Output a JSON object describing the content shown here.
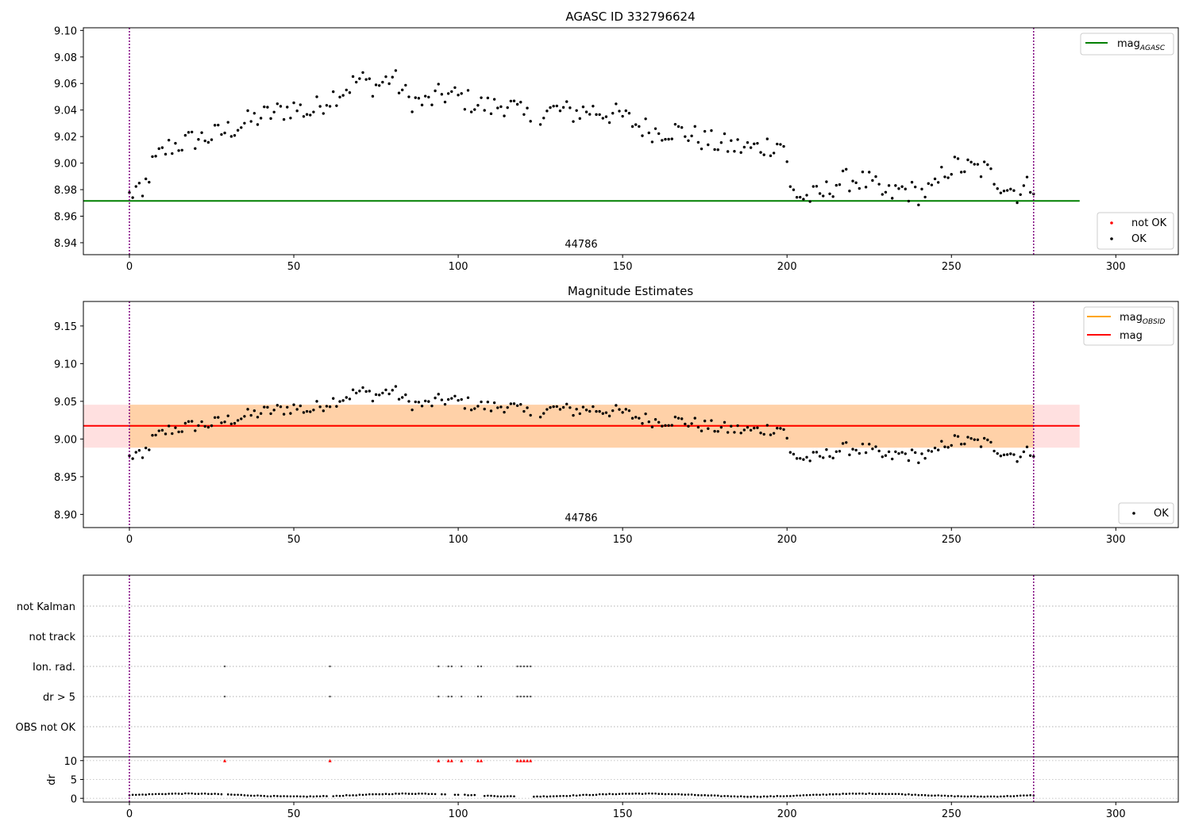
{
  "chart_data": [
    {
      "type": "scatter",
      "title": "AGASC ID 332796624",
      "xlim": [
        -14,
        319
      ],
      "ylim": [
        8.931,
        9.102
      ],
      "xticks": [
        0,
        50,
        100,
        150,
        200,
        250,
        300
      ],
      "xtick_labels": [
        "0",
        "50",
        "100",
        "150",
        "200",
        "250",
        "300"
      ],
      "yticks": [
        8.94,
        8.96,
        8.98,
        9.0,
        9.02,
        9.04,
        9.06,
        9.08,
        9.1
      ],
      "ytick_labels": [
        "8.94",
        "8.96",
        "8.98",
        "9.00",
        "9.02",
        "9.04",
        "9.06",
        "9.08",
        "9.10"
      ],
      "obsid_label": "44786",
      "obs_boundaries": [
        0,
        275
      ],
      "hlines": [
        {
          "name": "mag_AGASC",
          "y": 8.9715,
          "x_range": [
            -14,
            289
          ],
          "color": "#008000"
        }
      ],
      "legends": [
        {
          "position": "top-right",
          "entries": [
            {
              "label": "mag",
              "subscript": "AGASC",
              "kind": "line",
              "color": "#008000"
            }
          ]
        },
        {
          "position": "bottom-right",
          "entries": [
            {
              "label": "not OK",
              "kind": "dot",
              "color": "#ff0000"
            },
            {
              "label": "OK",
              "kind": "dot",
              "color": "#000000"
            }
          ]
        }
      ],
      "series": [
        {
          "name": "OK",
          "color": "#000000",
          "anchors": [
            [
              0,
              8.975
            ],
            [
              2,
              8.98
            ],
            [
              4,
              8.972
            ],
            [
              5,
              8.985
            ],
            [
              7,
              8.998
            ],
            [
              9,
              9.005
            ],
            [
              12,
              9.012
            ],
            [
              20,
              9.018
            ],
            [
              25,
              9.02
            ],
            [
              30,
              9.025
            ],
            [
              40,
              9.035
            ],
            [
              50,
              9.042
            ],
            [
              55,
              9.038
            ],
            [
              60,
              9.048
            ],
            [
              65,
              9.055
            ],
            [
              70,
              9.063
            ],
            [
              75,
              9.058
            ],
            [
              80,
              9.065
            ],
            [
              85,
              9.048
            ],
            [
              90,
              9.045
            ],
            [
              95,
              9.052
            ],
            [
              100,
              9.05
            ],
            [
              105,
              9.045
            ],
            [
              110,
              9.042
            ],
            [
              115,
              9.045
            ],
            [
              120,
              9.035
            ],
            [
              122,
              9.035
            ],
            [
              125,
              9.038
            ],
            [
              130,
              9.04
            ],
            [
              135,
              9.038
            ],
            [
              140,
              9.04
            ],
            [
              145,
              9.038
            ],
            [
              150,
              9.035
            ],
            [
              155,
              9.028
            ],
            [
              160,
              9.024
            ],
            [
              165,
              9.025
            ],
            [
              170,
              9.022
            ],
            [
              175,
              9.017
            ],
            [
              180,
              9.014
            ],
            [
              185,
              9.012
            ],
            [
              190,
              9.011
            ],
            [
              195,
              9.014
            ],
            [
              199,
              9.015
            ],
            [
              201,
              8.98
            ],
            [
              205,
              8.974
            ],
            [
              210,
              8.975
            ],
            [
              215,
              8.985
            ],
            [
              220,
              8.988
            ],
            [
              225,
              8.985
            ],
            [
              230,
              8.975
            ],
            [
              235,
              8.98
            ],
            [
              240,
              8.977
            ],
            [
              245,
              8.98
            ],
            [
              248,
              8.995
            ],
            [
              252,
              8.998
            ],
            [
              255,
              8.996
            ],
            [
              260,
              8.995
            ],
            [
              265,
              8.985
            ],
            [
              270,
              8.978
            ],
            [
              275,
              8.985
            ]
          ],
          "n": 276,
          "gap": [
            123,
            124
          ],
          "noise": 0.009
        },
        {
          "name": "not OK",
          "color": "#ff0000",
          "x": [],
          "y": []
        }
      ]
    },
    {
      "type": "scatter",
      "title": "Magnitude Estimates",
      "xlim": [
        -14,
        319
      ],
      "ylim": [
        8.8825,
        9.1825
      ],
      "xticks": [
        0,
        50,
        100,
        150,
        200,
        250,
        300
      ],
      "xtick_labels": [
        "0",
        "50",
        "100",
        "150",
        "200",
        "250",
        "300"
      ],
      "yticks": [
        8.9,
        8.95,
        9.0,
        9.05,
        9.1,
        9.15
      ],
      "ytick_labels": [
        "8.90",
        "8.95",
        "9.00",
        "9.05",
        "9.10",
        "9.15"
      ],
      "obsid_label": "44786",
      "obs_boundaries": [
        0,
        275
      ],
      "mag": {
        "name": "mag",
        "y": 9.0175,
        "band": [
          8.9885,
          9.0455
        ],
        "x_range": [
          -14,
          289
        ],
        "color": "#ff0000"
      },
      "mag_obsid": {
        "name": "mag_OBSID",
        "y": 9.0175,
        "band": [
          8.9885,
          9.0455
        ],
        "x_range": [
          0,
          275
        ],
        "color": "#ffa500"
      },
      "legends": [
        {
          "position": "top-right",
          "entries": [
            {
              "label": "mag",
              "subscript": "OBSID",
              "kind": "line",
              "color": "#ffa500"
            },
            {
              "label": "mag",
              "kind": "line",
              "color": "#ff0000"
            }
          ]
        },
        {
          "position": "bottom-right",
          "entries": [
            {
              "label": "OK",
              "kind": "dot",
              "color": "#000000"
            }
          ]
        }
      ]
    },
    {
      "type": "scatter",
      "xlim": [
        -14,
        319
      ],
      "xticks": [
        0,
        50,
        100,
        150,
        200,
        250,
        300
      ],
      "xtick_labels": [
        "0",
        "50",
        "100",
        "150",
        "200",
        "250",
        "300"
      ],
      "flag_rows": [
        "not Kalman",
        "not track",
        "Ion. rad.",
        "dr > 5",
        "OBS not OK"
      ],
      "flag_x": [
        29,
        61,
        94,
        97,
        98,
        101,
        106,
        107,
        118,
        119,
        120,
        121,
        122
      ],
      "flags": {
        "not Kalman": [],
        "not track": [],
        "Ion. rad.": "flag_x",
        "dr > 5": "flag_x",
        "OBS not OK": []
      },
      "ylabel": "dr",
      "dr_ylim": [
        -1,
        11
      ],
      "dr_yticks": [
        0,
        5,
        10
      ],
      "dr_ytick_labels": [
        "0",
        "5",
        "10"
      ],
      "dr_clipped_value": 10,
      "dr_series": {
        "name": "dr",
        "color": "#000000",
        "typical_range": [
          0.3,
          1.4
        ],
        "clipped_color": "#ff0000"
      },
      "obs_boundaries": [
        0,
        275
      ]
    }
  ]
}
